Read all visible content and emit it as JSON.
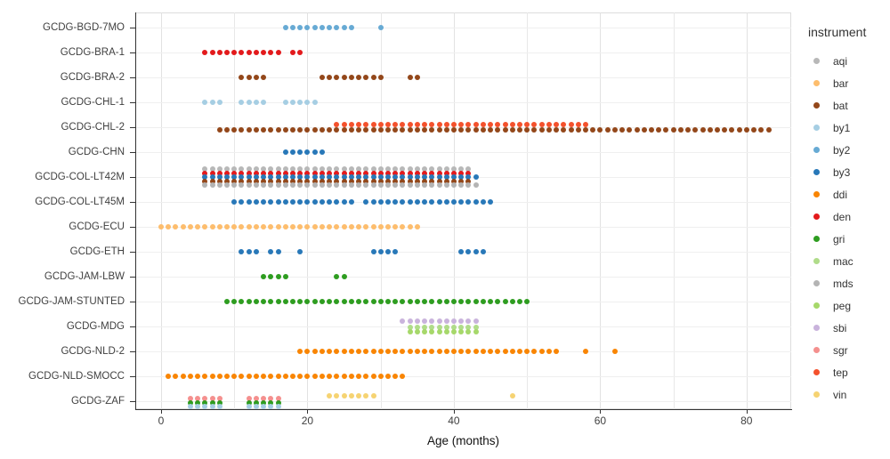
{
  "xaxis": {
    "title": "Age (months)"
  },
  "legend": {
    "title": "instrument"
  },
  "chart_data": {
    "type": "scatter",
    "title": "",
    "xlabel": "Age (months)",
    "ylabel": "",
    "x_ticks": [
      0,
      20,
      40,
      60,
      80
    ],
    "x_minor_ticks": [
      10,
      30,
      50,
      70
    ],
    "x_range": [
      -3.5,
      86
    ],
    "grid": "on",
    "legend_position": "right",
    "legend_title": "instrument",
    "legend_items": [
      "aqi",
      "bar",
      "bat",
      "by1",
      "by2",
      "by3",
      "ddi",
      "den",
      "gri",
      "mac",
      "mds",
      "peg",
      "sbi",
      "sgr",
      "tep",
      "vin"
    ],
    "instrument_colors": {
      "aqi": "#b8b8b8",
      "bar": "#fdbd6d",
      "bat": "#93471a",
      "by1": "#a6cee3",
      "by2": "#67aad4",
      "by3": "#2878b8",
      "ddi": "#f98503",
      "den": "#e31a1c",
      "gri": "#2e9d20",
      "mac": "#b0dc8a",
      "mds": "#b4b4b4",
      "peg": "#a6d86a",
      "sbi": "#c9b3dc",
      "sgr": "#f4908e",
      "tep": "#f4512c",
      "vin": "#f6d372"
    },
    "note": "ages_months lists inclusive monthly ranges [start,end] per instrument series; dy is the vertical stack offset of that series within its row",
    "rows": [
      {
        "label": "GCDG-BGD-7MO",
        "series": [
          {
            "instrument": "by2",
            "dy": 0,
            "ages_months": [
              [
                17,
                26
              ],
              [
                30,
                30
              ]
            ]
          }
        ]
      },
      {
        "label": "GCDG-BRA-1",
        "series": [
          {
            "instrument": "den",
            "dy": 0,
            "ages_months": [
              [
                6,
                16
              ],
              [
                18,
                19
              ]
            ]
          }
        ]
      },
      {
        "label": "GCDG-BRA-2",
        "series": [
          {
            "instrument": "bat",
            "dy": 0,
            "ages_months": [
              [
                11,
                14
              ],
              [
                22,
                30
              ],
              [
                34,
                35
              ]
            ]
          }
        ]
      },
      {
        "label": "GCDG-CHL-1",
        "series": [
          {
            "instrument": "by1",
            "dy": 0,
            "ages_months": [
              [
                6,
                8
              ],
              [
                11,
                14
              ],
              [
                17,
                21
              ]
            ]
          }
        ]
      },
      {
        "label": "GCDG-CHL-2",
        "series": [
          {
            "instrument": "tep",
            "dy": -3.5,
            "ages_months": [
              [
                24,
                58
              ]
            ]
          },
          {
            "instrument": "bat",
            "dy": 3,
            "ages_months": [
              [
                8,
                83
              ]
            ]
          }
        ]
      },
      {
        "label": "GCDG-CHN",
        "series": [
          {
            "instrument": "by3",
            "dy": 0,
            "ages_months": [
              [
                17,
                22
              ]
            ]
          }
        ]
      },
      {
        "label": "GCDG-COL-LT42M",
        "series": [
          {
            "instrument": "aqi",
            "dy": -9,
            "ages_months": [
              [
                6,
                42
              ]
            ]
          },
          {
            "instrument": "den",
            "dy": -4.5,
            "ages_months": [
              [
                6,
                42
              ]
            ]
          },
          {
            "instrument": "by3",
            "dy": 0,
            "ages_months": [
              [
                6,
                43
              ]
            ]
          },
          {
            "instrument": "bat",
            "dy": 4.5,
            "ages_months": [
              [
                6,
                42
              ]
            ]
          },
          {
            "instrument": "mds",
            "dy": 9,
            "ages_months": [
              [
                6,
                43
              ]
            ]
          }
        ]
      },
      {
        "label": "GCDG-COL-LT45M",
        "series": [
          {
            "instrument": "by3",
            "dy": 0,
            "ages_months": [
              [
                10,
                26
              ],
              [
                28,
                45
              ]
            ]
          }
        ]
      },
      {
        "label": "GCDG-ECU",
        "series": [
          {
            "instrument": "bar",
            "dy": 0,
            "ages_months": [
              [
                0,
                35
              ]
            ]
          }
        ]
      },
      {
        "label": "GCDG-ETH",
        "series": [
          {
            "instrument": "by3",
            "dy": 0,
            "ages_months": [
              [
                11,
                13
              ],
              [
                15,
                16
              ],
              [
                19,
                19
              ],
              [
                29,
                32
              ],
              [
                41,
                44
              ]
            ]
          }
        ]
      },
      {
        "label": "GCDG-JAM-LBW",
        "series": [
          {
            "instrument": "gri",
            "dy": 0,
            "ages_months": [
              [
                14,
                17
              ],
              [
                24,
                25
              ]
            ]
          }
        ]
      },
      {
        "label": "GCDG-JAM-STUNTED",
        "series": [
          {
            "instrument": "gri",
            "dy": 0,
            "ages_months": [
              [
                9,
                50
              ]
            ]
          }
        ]
      },
      {
        "label": "GCDG-MDG",
        "series": [
          {
            "instrument": "sbi",
            "dy": -6,
            "ages_months": [
              [
                33,
                43
              ]
            ]
          },
          {
            "instrument": "mac",
            "dy": 1,
            "ages_months": [
              [
                34,
                43
              ]
            ]
          },
          {
            "instrument": "peg",
            "dy": 6,
            "ages_months": [
              [
                34,
                43
              ]
            ]
          }
        ]
      },
      {
        "label": "GCDG-NLD-2",
        "series": [
          {
            "instrument": "ddi",
            "dy": 0,
            "ages_months": [
              [
                19,
                54
              ],
              [
                58,
                58
              ],
              [
                62,
                62
              ]
            ]
          }
        ]
      },
      {
        "label": "GCDG-NLD-SMOCC",
        "series": [
          {
            "instrument": "ddi",
            "dy": 0,
            "ages_months": [
              [
                1,
                33
              ]
            ]
          }
        ]
      },
      {
        "label": "GCDG-ZAF",
        "series": [
          {
            "instrument": "vin",
            "dy": -6.5,
            "ages_months": [
              [
                23,
                29
              ],
              [
                48,
                48
              ]
            ]
          },
          {
            "instrument": "sgr",
            "dy": -3,
            "ages_months": [
              [
                4,
                8
              ],
              [
                12,
                16
              ]
            ]
          },
          {
            "instrument": "gri",
            "dy": 1.5,
            "ages_months": [
              [
                4,
                8
              ],
              [
                12,
                16
              ]
            ]
          },
          {
            "instrument": "by1",
            "dy": 5.5,
            "ages_months": [
              [
                4,
                8
              ],
              [
                12,
                16
              ]
            ]
          }
        ]
      }
    ]
  }
}
